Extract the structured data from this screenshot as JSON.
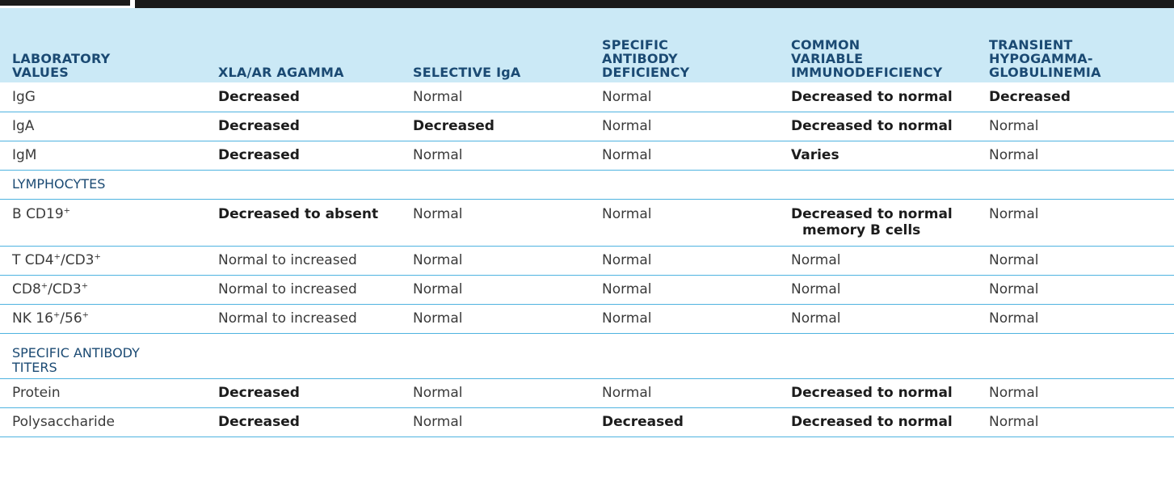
{
  "table": {
    "headers": [
      "LABORATORY VALUES",
      "XLA/AR AGAMMA",
      "SELECTIVE IgA",
      "SPECIFIC ANTIBODY DEFICIENCY",
      "COMMON VARIABLE IMMUNODEFICIENCY",
      "TRANSIENT HYPOGAMMA-GLOBULINEMIA"
    ],
    "header_lines": [
      [
        "LABORATORY",
        "VALUES"
      ],
      [
        "XLA/AR AGAMMA"
      ],
      [
        "SELECTIVE IgA"
      ],
      [
        "SPECIFIC",
        "ANTIBODY",
        "DEFICIENCY"
      ],
      [
        "COMMON",
        "VARIABLE",
        "IMMUNODEFICIENCY"
      ],
      [
        "TRANSIENT",
        "HYPOGAMMA-",
        "GLOBULINEMIA"
      ]
    ],
    "rows": [
      {
        "label": "IgG",
        "cells": [
          "Decreased",
          "Normal",
          "Normal",
          "Decreased to normal",
          "Decreased"
        ],
        "bold": [
          true,
          false,
          false,
          true,
          true
        ]
      },
      {
        "label": "IgA",
        "cells": [
          "Decreased",
          "Decreased",
          "Normal",
          "Decreased to normal",
          "Normal"
        ],
        "bold": [
          true,
          true,
          false,
          true,
          false
        ]
      },
      {
        "label": "IgM",
        "cells": [
          "Decreased",
          "Normal",
          "Normal",
          "Varies",
          "Normal"
        ],
        "bold": [
          true,
          false,
          false,
          true,
          false
        ]
      },
      {
        "section": "LYMPHOCYTES"
      },
      {
        "label": "B CD19+",
        "label_base": "B CD19",
        "label_sup": "+",
        "cells": [
          "Decreased to absent",
          "Normal",
          "Normal",
          "Decreased to normal",
          "Normal"
        ],
        "cells_sub": [
          "",
          "",
          "",
          "memory B cells",
          ""
        ],
        "bold": [
          true,
          false,
          false,
          true,
          false
        ]
      },
      {
        "label": "T CD4+/CD3+",
        "cells": [
          "Normal to increased",
          "Normal",
          "Normal",
          "Normal",
          "Normal"
        ],
        "bold": [
          false,
          false,
          false,
          false,
          false
        ]
      },
      {
        "label": "CD8+/CD3+",
        "cells": [
          "Normal to increased",
          "Normal",
          "Normal",
          "Normal",
          "Normal"
        ],
        "bold": [
          false,
          false,
          false,
          false,
          false
        ]
      },
      {
        "label": "NK 16+/56+",
        "cells": [
          "Normal to increased",
          "Normal",
          "Normal",
          "Normal",
          "Normal"
        ],
        "bold": [
          false,
          false,
          false,
          false,
          false
        ]
      },
      {
        "section": "SPECIFIC ANTIBODY TITERS",
        "section_lines": [
          "SPECIFIC ANTIBODY",
          "TITERS"
        ]
      },
      {
        "label": "Protein",
        "cells": [
          "Decreased",
          "Normal",
          "Normal",
          "Decreased to normal",
          "Normal"
        ],
        "bold": [
          true,
          false,
          false,
          true,
          false
        ]
      },
      {
        "label": "Polysaccharide",
        "cells": [
          "Decreased",
          "Normal",
          "Decreased",
          "Decreased to normal",
          "Normal"
        ],
        "bold": [
          true,
          false,
          true,
          true,
          false
        ]
      }
    ]
  },
  "colors": {
    "header_bg": "#cbe9f6",
    "header_text": "#1b4a73",
    "row_rule": "#4fb3e0",
    "top_bar": "#1a1a1a"
  }
}
